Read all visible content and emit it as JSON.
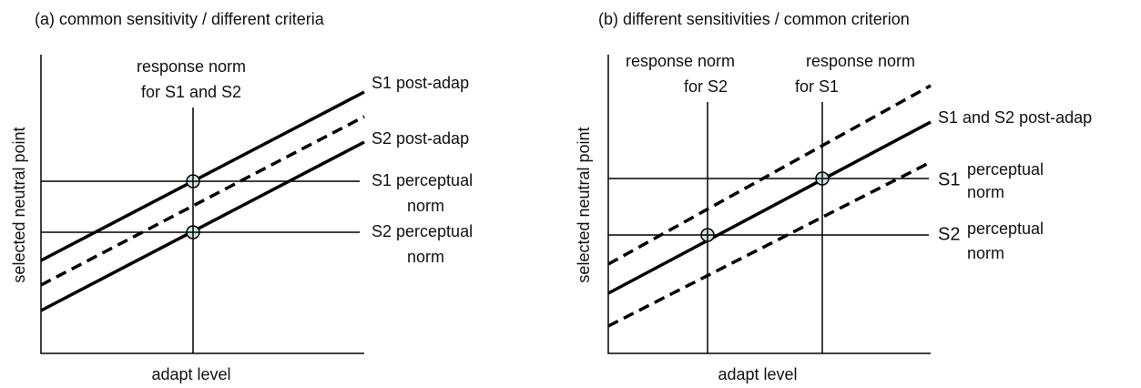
{
  "panels": [
    {
      "title": "(a) common sensitivity / different criteria",
      "y_label": "selected neutral point",
      "x_label": "adapt level",
      "labels": [
        "response norm",
        "for S1 and S2",
        "S1 post-adap",
        "S2 post-adap",
        "S1 perceptual",
        "norm",
        "S2 perceptual",
        "norm"
      ]
    },
    {
      "title": "(b) different sensitivities / common criterion",
      "y_label": "selected neutral point",
      "x_label": "adapt level",
      "labels": [
        "response norm",
        "for S2",
        "response norm",
        "for S1",
        "S1 and S2 post-adap",
        "S1",
        "perceptual",
        "norm",
        "S2",
        "perceptual",
        "norm"
      ]
    }
  ]
}
